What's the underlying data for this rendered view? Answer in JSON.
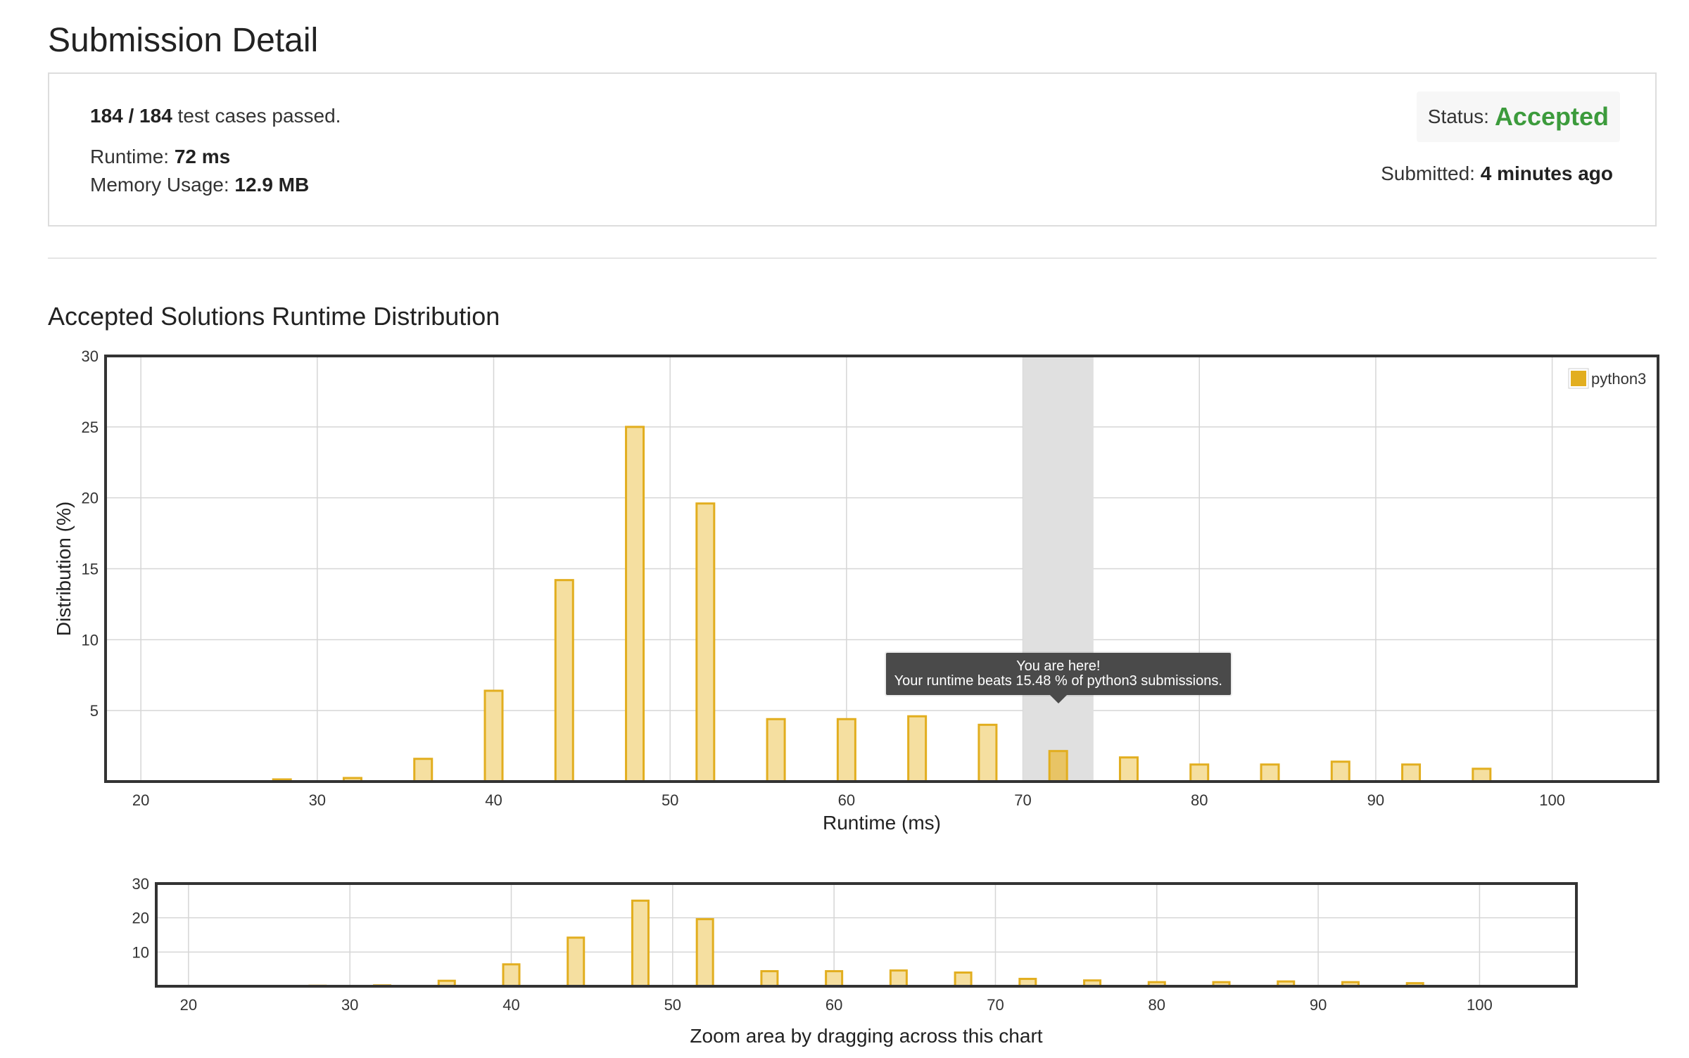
{
  "page": {
    "title": "Submission Detail"
  },
  "summary": {
    "passed": "184 / 184",
    "passed_suffix": " test cases passed.",
    "runtime_label": "Runtime: ",
    "runtime_value": "72 ms",
    "memory_label": "Memory Usage: ",
    "memory_value": "12.9 MB",
    "status_label": "Status: ",
    "status_value": "Accepted",
    "submitted_label": "Submitted: ",
    "submitted_value": "4 minutes ago"
  },
  "section": {
    "title": "Accepted Solutions Runtime Distribution"
  },
  "colors": {
    "bar_fill": "#f5dfa0",
    "bar_stroke": "#e2ae1f",
    "legend_swatch": "#e2ae1f",
    "highlight_band": "#e0e0e0",
    "highlight_bar": "#e8c465",
    "status_accepted": "#3c9b3c"
  },
  "tooltip": {
    "line1": "You are here!",
    "line2": "Your runtime beats 15.48 % of python3 submissions."
  },
  "chart_data": [
    {
      "type": "bar",
      "ylabel": "Distribution (%)",
      "xlabel": "Runtime (ms)",
      "xlim": [
        18,
        106
      ],
      "ylim": [
        0,
        30
      ],
      "x_ticks": [
        20,
        30,
        40,
        50,
        60,
        70,
        80,
        90,
        100
      ],
      "y_ticks": [
        5,
        10,
        15,
        20,
        25,
        30
      ],
      "grid": true,
      "legend": {
        "position": "top-right",
        "entries": [
          "python3"
        ]
      },
      "highlight_range": [
        70,
        74
      ],
      "highlight_x": 72,
      "series": [
        {
          "name": "python3",
          "x": [
            28,
            32,
            36,
            40,
            44,
            48,
            52,
            56,
            60,
            64,
            68,
            72,
            76,
            80,
            84,
            88,
            92,
            96
          ],
          "values": [
            0.15,
            0.25,
            1.6,
            6.4,
            14.2,
            25.0,
            19.6,
            4.4,
            4.4,
            4.6,
            4.0,
            2.15,
            1.7,
            1.2,
            1.2,
            1.4,
            1.2,
            0.9
          ]
        }
      ]
    },
    {
      "type": "bar",
      "xlabel": "Zoom area by dragging across this chart",
      "xlim": [
        18,
        106
      ],
      "ylim": [
        0,
        30
      ],
      "x_ticks": [
        20,
        30,
        40,
        50,
        60,
        70,
        80,
        90,
        100
      ],
      "y_ticks": [
        10,
        20,
        30
      ],
      "grid": true,
      "series": [
        {
          "x": [
            28,
            32,
            36,
            40,
            44,
            48,
            52,
            56,
            60,
            64,
            68,
            72,
            76,
            80,
            84,
            88,
            92,
            96
          ],
          "values": [
            0.15,
            0.25,
            1.6,
            6.4,
            14.2,
            25.0,
            19.6,
            4.4,
            4.4,
            4.6,
            4.0,
            2.15,
            1.7,
            1.2,
            1.2,
            1.4,
            1.2,
            0.9
          ]
        }
      ]
    }
  ]
}
